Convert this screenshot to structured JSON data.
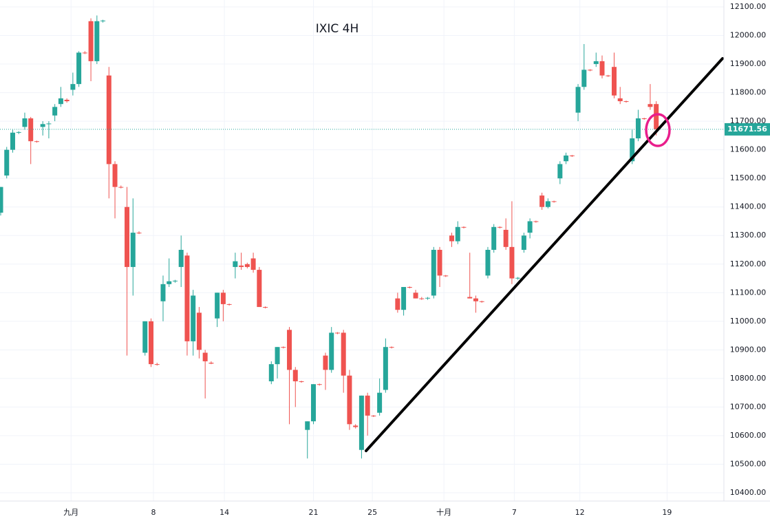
{
  "chart_data": {
    "type": "candlestick",
    "title": "IXIC 4H",
    "up_color": "#26a69a",
    "down_color": "#ef5350",
    "grid": true,
    "ylim": [
      10370,
      12120
    ],
    "xlim": [
      0,
      120.25
    ],
    "yticks": [
      {
        "value": 10400,
        "label": "10400.00"
      },
      {
        "value": 10500,
        "label": "10500.00"
      },
      {
        "value": 10600,
        "label": "10600.00"
      },
      {
        "value": 10700,
        "label": "10700.00"
      },
      {
        "value": 10800,
        "label": "10800.00"
      },
      {
        "value": 10900,
        "label": "10900.00"
      },
      {
        "value": 11000,
        "label": "11000.00"
      },
      {
        "value": 11100,
        "label": "11100.00"
      },
      {
        "value": 11200,
        "label": "11200.00"
      },
      {
        "value": 11300,
        "label": "11300.00"
      },
      {
        "value": 11400,
        "label": "11400.00"
      },
      {
        "value": 11500,
        "label": "11500.00"
      },
      {
        "value": 11600,
        "label": "11600.00"
      },
      {
        "value": 11700,
        "label": "11700.00"
      },
      {
        "value": 11800,
        "label": "11800.00"
      },
      {
        "value": 11900,
        "label": "11900.00"
      },
      {
        "value": 12000,
        "label": "12000.00"
      },
      {
        "value": 12100,
        "label": "12100.00"
      }
    ],
    "xticks": [
      {
        "value": 11.7,
        "label": "九月"
      },
      {
        "value": 25.4,
        "label": "8"
      },
      {
        "value": 37.2,
        "label": "14"
      },
      {
        "value": 52,
        "label": "21"
      },
      {
        "value": 61.8,
        "label": "25"
      },
      {
        "value": 73.7,
        "label": "十月"
      },
      {
        "value": 85.4,
        "label": "7"
      },
      {
        "value": 96.3,
        "label": "12"
      },
      {
        "value": 110.8,
        "label": "19"
      }
    ],
    "last_price": 11671.56,
    "open": [
      11380,
      11510,
      11600,
      11660,
      11680,
      11710,
      11630,
      11680,
      11690,
      11720,
      11760,
      11775,
      11810,
      11830,
      11940,
      12050,
      11910,
      12050,
      11860,
      11550,
      11470,
      11400,
      11190,
      11310,
      10890,
      11000,
      10850,
      11070,
      11130,
      11140,
      11190,
      11230,
      10930,
      11030,
      10890,
      10855,
      11010,
      11100,
      11060,
      11190,
      11195,
      11200,
      11220,
      11180,
      11050,
      10790,
      10850,
      10910,
      10970,
      10830,
      10790,
      10620,
      10650,
      10780,
      10880,
      10830,
      10960,
      10960,
      10810,
      10635,
      10550,
      10740,
      10670,
      10680,
      10760,
      10910,
      11080,
      11040,
      11120,
      11100,
      11080,
      11080,
      11090,
      11250,
      11160,
      11300,
      11280,
      11330,
      11085,
      11080,
      11070,
      11160,
      11250,
      11330,
      11320,
      11260,
      11150,
      11250,
      11310,
      11350,
      11440,
      11400,
      11420,
      11500,
      11560,
      11580,
      11730,
      11820,
      11880,
      11900,
      11910,
      11860,
      11890,
      11780,
      11770,
      11560,
      11640,
      11710,
      11760,
      11760
    ],
    "high": [
      11470,
      11610,
      11670,
      11665,
      11730,
      11715,
      11632,
      11700,
      11700,
      11760,
      11820,
      11780,
      11870,
      11945,
      11945,
      12060,
      12070,
      12055,
      11890,
      11560,
      11475,
      11470,
      11430,
      11315,
      11000,
      11010,
      10855,
      11160,
      11220,
      11145,
      11300,
      11240,
      11110,
      11050,
      10900,
      10860,
      11100,
      11110,
      11062,
      11240,
      11240,
      11205,
      11240,
      11190,
      11052,
      10860,
      10910,
      10912,
      10980,
      10840,
      10792,
      10650,
      10780,
      10782,
      10890,
      10980,
      10962,
      10970,
      10830,
      10640,
      10740,
      10750,
      10672,
      10800,
      10940,
      10912,
      11100,
      11120,
      11122,
      11110,
      11085,
      11085,
      11260,
      11260,
      11162,
      11310,
      11350,
      11332,
      11240,
      11090,
      11072,
      11260,
      11340,
      11332,
      11360,
      11420,
      11155,
      11310,
      11360,
      11352,
      11450,
      11430,
      11422,
      11560,
      11590,
      11582,
      11830,
      11970,
      11882,
      11940,
      11930,
      11862,
      11940,
      11820,
      11772,
      11670,
      11740,
      11712,
      11830,
      11770
    ],
    "low": [
      11370,
      11500,
      11590,
      11655,
      11670,
      11550,
      11625,
      11650,
      11640,
      11700,
      11750,
      11765,
      11790,
      11820,
      11935,
      11840,
      11900,
      12045,
      11430,
      11360,
      11465,
      10880,
      11090,
      11305,
      10880,
      10840,
      10845,
      11000,
      11120,
      11135,
      11120,
      10880,
      10880,
      10870,
      10730,
      10850,
      10980,
      11000,
      11055,
      11150,
      11180,
      11185,
      11170,
      11050,
      11045,
      10780,
      10800,
      10905,
      10640,
      10700,
      10785,
      10520,
      10640,
      10775,
      10760,
      10820,
      10955,
      10750,
      10620,
      10625,
      10520,
      10600,
      10665,
      10670,
      10750,
      10905,
      11030,
      11020,
      11115,
      11080,
      11075,
      11075,
      11080,
      11120,
      11155,
      11260,
      11270,
      11325,
      11080,
      11030,
      11065,
      11150,
      11240,
      11325,
      11250,
      11130,
      11145,
      11240,
      11290,
      11345,
      11390,
      11395,
      11415,
      11480,
      11550,
      11575,
      11700,
      11810,
      11875,
      11890,
      11850,
      11855,
      11780,
      11760,
      11765,
      11550,
      11630,
      11705,
      11740,
      11650
    ],
    "close": [
      11470,
      11600,
      11660,
      11662,
      11710,
      11630,
      11628,
      11690,
      11692,
      11750,
      11780,
      11770,
      11830,
      11940,
      11938,
      11910,
      12050,
      12052,
      11550,
      11470,
      11468,
      11190,
      11310,
      11308,
      11000,
      10850,
      10848,
      11130,
      11140,
      11142,
      11250,
      10930,
      11090,
      10900,
      10860,
      10852,
      11100,
      11060,
      11058,
      11210,
      11190,
      11190,
      11180,
      11050,
      11048,
      10850,
      10910,
      10908,
      10830,
      10790,
      10788,
      10650,
      10780,
      10778,
      10830,
      10960,
      10958,
      10810,
      10640,
      10630,
      10740,
      10670,
      10668,
      10750,
      10910,
      10908,
      11040,
      11120,
      11118,
      11080,
      11078,
      11082,
      11250,
      11160,
      11158,
      11280,
      11330,
      11328,
      11080,
      11070,
      11068,
      11250,
      11330,
      11328,
      11260,
      11150,
      11152,
      11300,
      11350,
      11348,
      11400,
      11420,
      11418,
      11550,
      11580,
      11578,
      11820,
      11880,
      11878,
      11910,
      11860,
      11858,
      11790,
      11770,
      11768,
      11640,
      11710,
      11708,
      11750,
      11671.56
    ]
  }
}
